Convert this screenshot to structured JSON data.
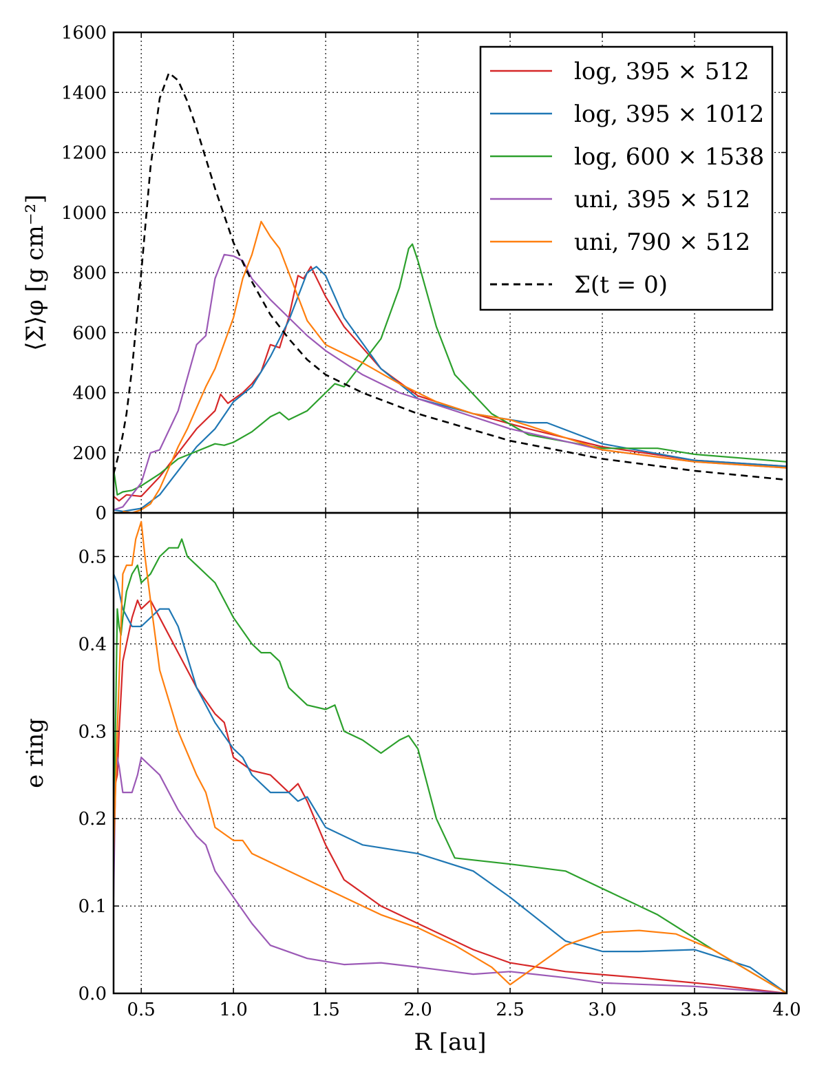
{
  "chart_data": [
    {
      "type": "line",
      "panel": "top",
      "title": "",
      "ylabel": "⟨Σ⟩φ  [g cm⁻²]",
      "xlabel": "",
      "xlim": [
        0.35,
        4.0
      ],
      "ylim": [
        0,
        1600
      ],
      "yticks": [
        0,
        200,
        400,
        600,
        800,
        1000,
        1200,
        1400,
        1600
      ],
      "ytick_labels": [
        "0",
        "200",
        "400",
        "600",
        "800",
        "1000",
        "1200",
        "1400",
        "1600"
      ],
      "xticks": [
        0.5,
        1.0,
        1.5,
        2.0,
        2.5,
        3.0,
        3.5,
        4.0
      ],
      "grid": true,
      "legend_position": "top-right",
      "series": [
        {
          "name": "log,  395 × 512",
          "color": "#d62728",
          "dash": "solid",
          "x": [
            0.35,
            0.38,
            0.42,
            0.5,
            0.6,
            0.7,
            0.8,
            0.9,
            0.93,
            0.97,
            1.05,
            1.1,
            1.15,
            1.2,
            1.25,
            1.3,
            1.35,
            1.38,
            1.42,
            1.5,
            1.6,
            1.8,
            2.0,
            2.3,
            2.6,
            3.0,
            3.5,
            4.0
          ],
          "y": [
            55,
            40,
            60,
            55,
            120,
            200,
            280,
            340,
            395,
            365,
            400,
            430,
            470,
            560,
            550,
            650,
            790,
            780,
            820,
            720,
            620,
            480,
            390,
            330,
            280,
            220,
            175,
            155
          ]
        },
        {
          "name": "log,  395 × 1012",
          "color": "#1f77b4",
          "dash": "solid",
          "x": [
            0.35,
            0.4,
            0.5,
            0.6,
            0.7,
            0.8,
            0.9,
            1.0,
            1.05,
            1.1,
            1.2,
            1.3,
            1.4,
            1.45,
            1.5,
            1.6,
            1.8,
            2.0,
            2.3,
            2.6,
            2.7,
            3.0,
            3.5,
            4.0
          ],
          "y": [
            10,
            5,
            15,
            60,
            140,
            220,
            280,
            370,
            395,
            420,
            520,
            640,
            800,
            820,
            790,
            650,
            480,
            380,
            330,
            300,
            300,
            230,
            175,
            155
          ]
        },
        {
          "name": "log,  600 × 1538",
          "color": "#2ca02c",
          "dash": "solid",
          "x": [
            0.35,
            0.37,
            0.4,
            0.45,
            0.5,
            0.6,
            0.7,
            0.8,
            0.9,
            0.95,
            1.0,
            1.1,
            1.2,
            1.25,
            1.3,
            1.4,
            1.5,
            1.55,
            1.6,
            1.7,
            1.8,
            1.9,
            1.95,
            1.97,
            2.0,
            2.1,
            2.2,
            2.4,
            2.6,
            3.0,
            3.3,
            3.5,
            4.0
          ],
          "y": [
            145,
            60,
            70,
            75,
            90,
            130,
            180,
            205,
            230,
            225,
            235,
            270,
            320,
            335,
            310,
            340,
            400,
            430,
            420,
            500,
            580,
            750,
            880,
            895,
            840,
            620,
            460,
            330,
            260,
            215,
            215,
            195,
            170
          ]
        },
        {
          "name": "uni,  395 × 512",
          "color": "#9b59b6",
          "dash": "solid",
          "x": [
            0.35,
            0.4,
            0.5,
            0.55,
            0.6,
            0.7,
            0.8,
            0.85,
            0.9,
            0.95,
            1.0,
            1.05,
            1.1,
            1.2,
            1.3,
            1.4,
            1.5,
            1.7,
            1.9,
            2.2,
            2.5,
            3.0,
            3.5,
            4.0
          ],
          "y": [
            10,
            20,
            100,
            200,
            210,
            340,
            560,
            590,
            780,
            860,
            855,
            840,
            780,
            710,
            650,
            590,
            540,
            460,
            400,
            340,
            280,
            210,
            170,
            150
          ]
        },
        {
          "name": "uni,  790 × 512",
          "color": "#ff7f0e",
          "dash": "solid",
          "x": [
            0.4,
            0.45,
            0.5,
            0.55,
            0.6,
            0.65,
            0.7,
            0.75,
            0.8,
            0.85,
            0.9,
            1.0,
            1.05,
            1.1,
            1.15,
            1.2,
            1.25,
            1.3,
            1.4,
            1.5,
            1.7,
            1.9,
            2.1,
            2.3,
            2.5,
            2.7,
            3.0,
            3.5,
            4.0
          ],
          "y": [
            5,
            0,
            10,
            30,
            80,
            150,
            220,
            280,
            350,
            420,
            480,
            650,
            780,
            860,
            970,
            920,
            880,
            800,
            640,
            560,
            500,
            430,
            370,
            330,
            310,
            270,
            210,
            170,
            150
          ]
        },
        {
          "name": "Σ(t = 0)",
          "color": "#000000",
          "dash": "dashed",
          "x": [
            0.35,
            0.38,
            0.4,
            0.42,
            0.45,
            0.5,
            0.55,
            0.6,
            0.65,
            0.7,
            0.75,
            0.8,
            0.9,
            1.0,
            1.1,
            1.2,
            1.3,
            1.4,
            1.5,
            1.7,
            2.0,
            2.5,
            3.0,
            3.5,
            4.0
          ],
          "y": [
            130,
            200,
            260,
            330,
            480,
            800,
            1150,
            1380,
            1465,
            1440,
            1370,
            1280,
            1080,
            900,
            770,
            660,
            580,
            510,
            460,
            400,
            330,
            240,
            180,
            140,
            110
          ]
        }
      ]
    },
    {
      "type": "line",
      "panel": "bottom",
      "title": "",
      "ylabel": "e ring",
      "xlabel": "R [au]",
      "xlim": [
        0.35,
        4.0
      ],
      "ylim": [
        0.0,
        0.55
      ],
      "yticks": [
        0.0,
        0.1,
        0.2,
        0.3,
        0.4,
        0.5
      ],
      "ytick_labels": [
        "0.0",
        "0.1",
        "0.2",
        "0.3",
        "0.4",
        "0.5"
      ],
      "xticks": [
        0.5,
        1.0,
        1.5,
        2.0,
        2.5,
        3.0,
        3.5,
        4.0
      ],
      "xtick_labels": [
        "0.5",
        "1.0",
        "1.5",
        "2.0",
        "2.5",
        "3.0",
        "3.5",
        "4.0"
      ],
      "grid": true,
      "series": [
        {
          "name": "log,  395 × 512",
          "color": "#d62728",
          "dash": "solid",
          "x": [
            0.35,
            0.36,
            0.37,
            0.38,
            0.4,
            0.45,
            0.48,
            0.5,
            0.55,
            0.6,
            0.7,
            0.8,
            0.9,
            0.95,
            1.0,
            1.1,
            1.2,
            1.25,
            1.3,
            1.35,
            1.4,
            1.5,
            1.6,
            1.8,
            2.0,
            2.3,
            2.5,
            2.8,
            3.2,
            3.6,
            4.0
          ],
          "y": [
            0.14,
            0.24,
            0.25,
            0.3,
            0.38,
            0.43,
            0.45,
            0.44,
            0.45,
            0.43,
            0.39,
            0.35,
            0.32,
            0.31,
            0.27,
            0.255,
            0.25,
            0.24,
            0.23,
            0.24,
            0.22,
            0.17,
            0.13,
            0.1,
            0.08,
            0.05,
            0.035,
            0.025,
            0.018,
            0.01,
            0.0
          ]
        },
        {
          "name": "log,  395 × 1012",
          "color": "#1f77b4",
          "dash": "solid",
          "x": [
            0.35,
            0.37,
            0.4,
            0.45,
            0.5,
            0.55,
            0.6,
            0.65,
            0.7,
            0.8,
            0.9,
            1.0,
            1.05,
            1.1,
            1.2,
            1.3,
            1.35,
            1.4,
            1.5,
            1.7,
            2.0,
            2.3,
            2.5,
            2.8,
            3.0,
            3.2,
            3.5,
            3.8,
            4.0
          ],
          "y": [
            0.48,
            0.47,
            0.44,
            0.42,
            0.42,
            0.43,
            0.44,
            0.44,
            0.42,
            0.35,
            0.31,
            0.28,
            0.27,
            0.25,
            0.23,
            0.23,
            0.22,
            0.225,
            0.19,
            0.17,
            0.16,
            0.14,
            0.11,
            0.06,
            0.048,
            0.048,
            0.05,
            0.03,
            0.0
          ]
        },
        {
          "name": "log,  600 × 1538",
          "color": "#2ca02c",
          "dash": "solid",
          "x": [
            0.35,
            0.37,
            0.38,
            0.39,
            0.4,
            0.42,
            0.45,
            0.48,
            0.5,
            0.55,
            0.6,
            0.65,
            0.7,
            0.72,
            0.75,
            0.8,
            0.9,
            1.0,
            1.1,
            1.15,
            1.2,
            1.25,
            1.3,
            1.4,
            1.5,
            1.55,
            1.6,
            1.7,
            1.8,
            1.9,
            1.95,
            2.0,
            2.1,
            2.2,
            2.5,
            2.8,
            3.0,
            3.3,
            3.6,
            4.0
          ],
          "y": [
            0.16,
            0.44,
            0.42,
            0.41,
            0.43,
            0.46,
            0.48,
            0.49,
            0.47,
            0.48,
            0.5,
            0.51,
            0.51,
            0.52,
            0.5,
            0.49,
            0.47,
            0.43,
            0.4,
            0.39,
            0.39,
            0.38,
            0.35,
            0.33,
            0.325,
            0.33,
            0.3,
            0.29,
            0.275,
            0.29,
            0.295,
            0.28,
            0.2,
            0.155,
            0.148,
            0.14,
            0.12,
            0.09,
            0.05,
            0.0
          ]
        },
        {
          "name": "uni,  395 × 512",
          "color": "#9b59b6",
          "dash": "solid",
          "x": [
            0.35,
            0.36,
            0.37,
            0.38,
            0.4,
            0.45,
            0.48,
            0.5,
            0.55,
            0.6,
            0.7,
            0.8,
            0.85,
            0.9,
            1.0,
            1.1,
            1.2,
            1.4,
            1.6,
            1.8,
            2.0,
            2.3,
            2.5,
            2.8,
            3.0,
            3.5,
            4.0
          ],
          "y": [
            0.11,
            0.24,
            0.27,
            0.26,
            0.23,
            0.23,
            0.25,
            0.27,
            0.26,
            0.25,
            0.21,
            0.18,
            0.17,
            0.14,
            0.11,
            0.08,
            0.055,
            0.04,
            0.033,
            0.035,
            0.03,
            0.022,
            0.025,
            0.018,
            0.012,
            0.008,
            0.0
          ]
        },
        {
          "name": "uni,  790 × 512",
          "color": "#ff7f0e",
          "dash": "solid",
          "x": [
            0.35,
            0.37,
            0.4,
            0.42,
            0.45,
            0.47,
            0.5,
            0.52,
            0.55,
            0.6,
            0.7,
            0.8,
            0.85,
            0.9,
            1.0,
            1.05,
            1.1,
            1.2,
            1.4,
            1.6,
            1.8,
            2.0,
            2.2,
            2.4,
            2.5,
            2.6,
            2.8,
            3.0,
            3.2,
            3.4,
            3.6,
            4.0
          ],
          "y": [
            0.16,
            0.3,
            0.48,
            0.49,
            0.49,
            0.52,
            0.54,
            0.5,
            0.45,
            0.37,
            0.3,
            0.25,
            0.23,
            0.19,
            0.175,
            0.175,
            0.16,
            0.15,
            0.13,
            0.11,
            0.09,
            0.075,
            0.055,
            0.03,
            0.01,
            0.025,
            0.055,
            0.07,
            0.072,
            0.068,
            0.05,
            0.0
          ]
        }
      ]
    }
  ]
}
